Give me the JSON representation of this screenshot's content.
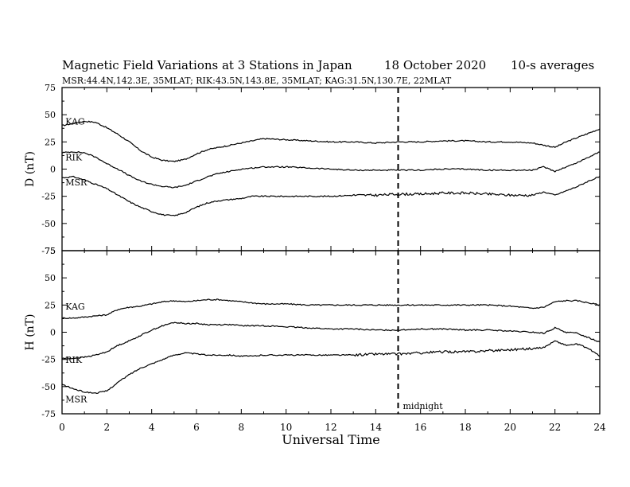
{
  "header": {
    "title": "Magnetic Field Variations at 3 Stations in Japan",
    "date": "18 October 2020",
    "averaging": "10-s averages",
    "stations_line": "MSR:44.4N,142.3E, 35MLAT;  RIK:43.5N,143.8E, 35MLAT;  KAG:31.5N,130.7E, 22MLAT"
  },
  "chart_data": [
    {
      "type": "line",
      "ylabel": "D (nT)",
      "ylim": [
        -75,
        75
      ],
      "yticks": [
        75,
        50,
        25,
        0,
        -25,
        -50,
        -75
      ],
      "xlim": [
        0,
        24
      ],
      "series": [
        {
          "name": "KAG",
          "x": [
            0,
            0.5,
            1,
            1.5,
            2,
            2.5,
            3,
            3.5,
            4,
            4.5,
            5,
            5.5,
            6,
            6.5,
            7,
            7.5,
            8,
            8.5,
            9,
            10,
            11,
            12,
            13,
            14,
            15,
            16,
            17,
            18,
            19,
            20,
            21,
            21.5,
            22,
            22.5,
            23,
            23.5,
            24
          ],
          "values": [
            40,
            42,
            44,
            43,
            38,
            32,
            25,
            17,
            11,
            8,
            7,
            9,
            14,
            18,
            20,
            22,
            24,
            26,
            28,
            27,
            26,
            25,
            25,
            24,
            25,
            25,
            26,
            26,
            25,
            25,
            24,
            22,
            20,
            25,
            29,
            33,
            37
          ]
        },
        {
          "name": "RIK",
          "x": [
            0,
            0.5,
            1,
            1.5,
            2,
            2.5,
            3,
            3.5,
            4,
            4.5,
            5,
            5.5,
            6,
            6.5,
            7,
            7.5,
            8,
            8.5,
            9,
            10,
            11,
            12,
            13,
            14,
            15,
            16,
            17,
            18,
            19,
            20,
            21,
            21.5,
            22,
            22.5,
            23,
            23.5,
            24
          ],
          "values": [
            15,
            16,
            15,
            11,
            5,
            0,
            -6,
            -11,
            -14,
            -16,
            -17,
            -15,
            -11,
            -7,
            -4,
            -2,
            0,
            1,
            2,
            2,
            1,
            0,
            -1,
            -1,
            -1,
            -1,
            0,
            0,
            -1,
            -1,
            -1,
            2,
            -2,
            2,
            6,
            11,
            16
          ]
        },
        {
          "name": "MSR",
          "x": [
            0,
            0.5,
            1,
            1.5,
            2,
            2.5,
            3,
            3.5,
            4,
            4.5,
            5,
            5.5,
            6,
            6.5,
            7,
            7.5,
            8,
            8.5,
            9,
            10,
            11,
            12,
            13,
            14,
            15,
            16,
            17,
            18,
            19,
            20,
            21,
            21.5,
            22,
            22.5,
            23,
            23.5,
            24
          ],
          "values": [
            -8,
            -7,
            -10,
            -14,
            -18,
            -24,
            -30,
            -35,
            -39,
            -42,
            -43,
            -40,
            -35,
            -31,
            -29,
            -28,
            -27,
            -25,
            -25,
            -25,
            -25,
            -25,
            -24,
            -24,
            -23,
            -23,
            -22,
            -22,
            -23,
            -24,
            -24,
            -21,
            -24,
            -20,
            -16,
            -11,
            -7
          ]
        }
      ]
    },
    {
      "type": "line",
      "ylabel": "H (nT)",
      "ylim": [
        -75,
        75
      ],
      "yticks": [
        75,
        50,
        25,
        0,
        -25,
        -50,
        -75
      ],
      "xlim": [
        0,
        24
      ],
      "series": [
        {
          "name": "KAG",
          "x": [
            0,
            0.5,
            1,
            1.5,
            2,
            2.5,
            3,
            3.5,
            4,
            4.5,
            5,
            5.5,
            6,
            6.5,
            7,
            7.5,
            8,
            8.5,
            9,
            10,
            11,
            12,
            13,
            14,
            15,
            16,
            17,
            18,
            19,
            20,
            21,
            21.5,
            22,
            22.5,
            23,
            23.5,
            24
          ],
          "values": [
            13,
            13,
            14,
            15,
            16,
            21,
            23,
            24,
            26,
            28,
            29,
            28,
            29,
            30,
            30,
            29,
            28,
            27,
            26,
            26,
            25,
            25,
            25,
            25,
            25,
            25,
            25,
            25,
            25,
            24,
            22,
            23,
            28,
            29,
            29,
            27,
            25
          ]
        },
        {
          "name": "RIK",
          "x": [
            0,
            0.5,
            1,
            1.5,
            2,
            2.5,
            3,
            3.5,
            4,
            4.5,
            5,
            5.5,
            6,
            6.5,
            7,
            7.5,
            8,
            8.5,
            9,
            10,
            11,
            12,
            13,
            14,
            15,
            16,
            17,
            18,
            19,
            20,
            21,
            21.5,
            22,
            22.5,
            23,
            23.5,
            24
          ],
          "values": [
            -24,
            -24,
            -23,
            -21,
            -18,
            -12,
            -8,
            -3,
            2,
            6,
            9,
            8,
            8,
            7,
            7,
            7,
            6,
            6,
            6,
            5,
            4,
            3,
            3,
            2,
            2,
            3,
            3,
            2,
            2,
            1,
            0,
            -1,
            4,
            0,
            -1,
            -5,
            -9
          ]
        },
        {
          "name": "MSR",
          "x": [
            0,
            0.5,
            1,
            1.5,
            2,
            2.5,
            3,
            3.5,
            4,
            4.5,
            5,
            5.5,
            6,
            6.5,
            7,
            7.5,
            8,
            8.5,
            9,
            10,
            11,
            12,
            13,
            14,
            15,
            16,
            17,
            18,
            19,
            20,
            21,
            21.5,
            22,
            22.5,
            23,
            23.5,
            24
          ],
          "values": [
            -48,
            -52,
            -55,
            -56,
            -54,
            -46,
            -39,
            -33,
            -29,
            -25,
            -21,
            -19,
            -20,
            -21,
            -21,
            -21,
            -22,
            -22,
            -21,
            -21,
            -21,
            -21,
            -21,
            -20,
            -20,
            -19,
            -18,
            -18,
            -17,
            -16,
            -15,
            -14,
            -8,
            -12,
            -11,
            -15,
            -22
          ]
        }
      ]
    }
  ],
  "x_axis": {
    "label": "Universal Time",
    "ticks": [
      0,
      2,
      4,
      6,
      8,
      10,
      12,
      14,
      16,
      18,
      20,
      22,
      24
    ]
  },
  "annotation": {
    "midnight_ut": 15,
    "label": "midnight"
  }
}
